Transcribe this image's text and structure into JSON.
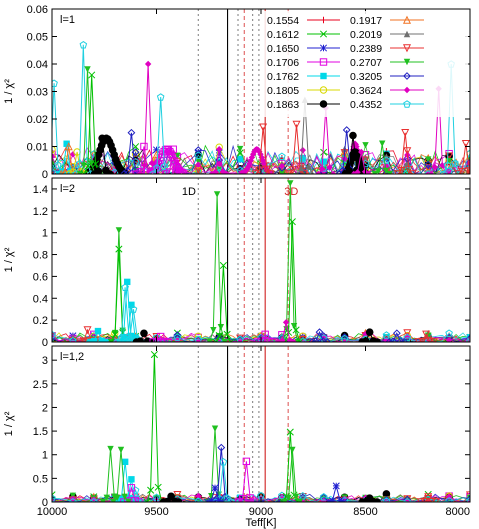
{
  "chart_data": {
    "type": "line",
    "x_label": "Teff[K]",
    "y_label": "1 / χ²",
    "x_range": [
      10000,
      8000
    ],
    "x_ticks": [
      "10000",
      "9500",
      "9000",
      "8500",
      "8000"
    ],
    "x_tick_values": [
      10000,
      9500,
      9000,
      8500,
      8000
    ],
    "vertical_lines": [
      {
        "x": 9300,
        "style": "dotted",
        "color": "#888888"
      },
      {
        "x": 9160,
        "style": "solid",
        "color": "#000000"
      },
      {
        "x": 9110,
        "style": "dotted",
        "color": "#888888"
      },
      {
        "x": 9080,
        "style": "dashed",
        "color": "#e06060"
      },
      {
        "x": 9040,
        "style": "dotted",
        "color": "#888888"
      },
      {
        "x": 9010,
        "style": "dotted",
        "color": "#888888"
      },
      {
        "x": 8980,
        "style": "solid",
        "color": "#d02020"
      },
      {
        "x": 8870,
        "style": "dashed",
        "color": "#e06060"
      }
    ],
    "legend": [
      {
        "name": "0.1554",
        "color": "#e8001c",
        "marker": "+"
      },
      {
        "name": "0.1612",
        "color": "#00c000",
        "marker": "x"
      },
      {
        "name": "0.1650",
        "color": "#2020d0",
        "marker": "*"
      },
      {
        "name": "0.1706",
        "color": "#e000e0",
        "marker": "sq"
      },
      {
        "name": "0.1762",
        "color": "#00d8e8",
        "marker": "fsq"
      },
      {
        "name": "0.1805",
        "color": "#d8d800",
        "marker": "o"
      },
      {
        "name": "0.1863",
        "color": "#000000",
        "marker": "fo"
      },
      {
        "name": "0.1917",
        "color": "#f07020",
        "marker": "tri"
      },
      {
        "name": "0.2019",
        "color": "#707070",
        "marker": "ftri"
      },
      {
        "name": "0.2389",
        "color": "#e83030",
        "marker": "itri"
      },
      {
        "name": "0.2707",
        "color": "#20c020",
        "marker": "fitri"
      },
      {
        "name": "0.3205",
        "color": "#2020c0",
        "marker": "dia"
      },
      {
        "name": "0.3624",
        "color": "#e000c0",
        "marker": "fdia"
      },
      {
        "name": "0.4352",
        "color": "#20d0e0",
        "marker": "pent"
      }
    ],
    "panels": [
      {
        "label": "l=1",
        "y_range": [
          0,
          0.06
        ],
        "y_ticks": [
          "0",
          "0.01",
          "0.02",
          "0.03",
          "0.04",
          "0.05",
          "0.06"
        ],
        "y_tick_values": [
          0,
          0.01,
          0.02,
          0.03,
          0.04,
          0.05,
          0.06
        ],
        "annotations": [],
        "peaks": [
          {
            "series": 13,
            "x": 9990,
            "y": 0.033
          },
          {
            "series": 4,
            "x": 9930,
            "y": 0.011
          },
          {
            "series": 7,
            "x": 9920,
            "y": 0.01
          },
          {
            "series": 5,
            "x": 9880,
            "y": 0.008
          },
          {
            "series": 13,
            "x": 9850,
            "y": 0.047
          },
          {
            "series": 10,
            "x": 9830,
            "y": 0.038
          },
          {
            "series": 1,
            "x": 9810,
            "y": 0.036
          },
          {
            "series": 6,
            "x": 9760,
            "y": 0.013
          },
          {
            "series": 11,
            "x": 9620,
            "y": 0.015
          },
          {
            "series": 3,
            "x": 9560,
            "y": 0.01
          },
          {
            "series": 12,
            "x": 9540,
            "y": 0.04
          },
          {
            "series": 13,
            "x": 9480,
            "y": 0.028
          },
          {
            "series": 3,
            "x": 9420,
            "y": 0.009
          },
          {
            "series": 12,
            "x": 9200,
            "y": 0.009
          },
          {
            "series": 9,
            "x": 8990,
            "y": 0.017
          },
          {
            "series": 9,
            "x": 8830,
            "y": 0.018
          },
          {
            "series": 8,
            "x": 8790,
            "y": 0.027
          },
          {
            "series": 12,
            "x": 8690,
            "y": 0.024
          },
          {
            "series": 11,
            "x": 8590,
            "y": 0.016
          },
          {
            "series": 6,
            "x": 8560,
            "y": 0.014
          },
          {
            "series": 12,
            "x": 8520,
            "y": 0.008
          },
          {
            "series": 10,
            "x": 8420,
            "y": 0.011
          },
          {
            "series": 9,
            "x": 8310,
            "y": 0.015
          },
          {
            "series": 12,
            "x": 8150,
            "y": 0.031
          },
          {
            "series": 13,
            "x": 8090,
            "y": 0.04
          },
          {
            "series": 9,
            "x": 8020,
            "y": 0.011
          }
        ],
        "bumps": [
          {
            "series": 6,
            "x": 9740,
            "y": 0.013,
            "width": 90
          },
          {
            "series": 3,
            "x": 9450,
            "y": 0.009,
            "width": 80
          },
          {
            "series": 12,
            "x": 9020,
            "y": 0.009,
            "width": 70
          },
          {
            "series": 12,
            "x": 8550,
            "y": 0.011,
            "width": 40
          },
          {
            "series": 6,
            "x": 8550,
            "y": 0.008,
            "width": 50
          }
        ]
      },
      {
        "label": "l=2",
        "y_range": [
          0,
          1.5
        ],
        "y_ticks": [
          "0",
          "0.2",
          "0.4",
          "0.6",
          "0.8",
          "1",
          "1.2",
          "1.4"
        ],
        "y_tick_values": [
          0,
          0.2,
          0.4,
          0.6,
          0.8,
          1.0,
          1.2,
          1.4
        ],
        "annotations": [
          {
            "text": "1D",
            "x": 9345,
            "y": 1.38,
            "color": "#000000"
          },
          {
            "text": "3D",
            "x": 8855,
            "y": 1.38,
            "color": "#d02020"
          }
        ],
        "peaks": [
          {
            "series": 9,
            "x": 9830,
            "y": 0.11
          },
          {
            "series": 4,
            "x": 9780,
            "y": 0.1
          },
          {
            "series": 10,
            "x": 9680,
            "y": 1.02
          },
          {
            "series": 1,
            "x": 9680,
            "y": 0.85
          },
          {
            "series": 4,
            "x": 9640,
            "y": 0.55
          },
          {
            "series": 13,
            "x": 9650,
            "y": 0.5
          },
          {
            "series": 4,
            "x": 9620,
            "y": 0.34
          },
          {
            "series": 13,
            "x": 9610,
            "y": 0.3
          },
          {
            "series": 6,
            "x": 9560,
            "y": 0.08
          },
          {
            "series": 3,
            "x": 9480,
            "y": 0.05
          },
          {
            "series": 10,
            "x": 9210,
            "y": 1.35
          },
          {
            "series": 1,
            "x": 9180,
            "y": 0.7
          },
          {
            "series": 10,
            "x": 8860,
            "y": 1.45
          },
          {
            "series": 1,
            "x": 8850,
            "y": 1.1
          },
          {
            "series": 12,
            "x": 8880,
            "y": 0.18
          },
          {
            "series": 3,
            "x": 8980,
            "y": 0.07
          },
          {
            "series": 11,
            "x": 8720,
            "y": 0.09
          },
          {
            "series": 6,
            "x": 8480,
            "y": 0.09
          },
          {
            "series": 11,
            "x": 8350,
            "y": 0.08
          },
          {
            "series": 9,
            "x": 8210,
            "y": 0.07
          }
        ],
        "bumps": []
      },
      {
        "label": "l=1,2",
        "y_range": [
          0,
          3.3
        ],
        "y_ticks": [
          "0",
          "0.5",
          "1",
          "1.5",
          "2",
          "2.5",
          "3"
        ],
        "y_tick_values": [
          0,
          0.5,
          1.0,
          1.5,
          2.0,
          2.5,
          3.0
        ],
        "annotations": [],
        "peaks": [
          {
            "series": 10,
            "x": 9720,
            "y": 1.12
          },
          {
            "series": 4,
            "x": 9650,
            "y": 0.85
          },
          {
            "series": 4,
            "x": 9620,
            "y": 0.48
          },
          {
            "series": 13,
            "x": 9600,
            "y": 0.25
          },
          {
            "series": 3,
            "x": 9620,
            "y": 0.3
          },
          {
            "series": 10,
            "x": 9670,
            "y": 1.1
          },
          {
            "series": 1,
            "x": 9510,
            "y": 3.12
          },
          {
            "series": 6,
            "x": 9430,
            "y": 0.12
          },
          {
            "series": 10,
            "x": 9220,
            "y": 1.55
          },
          {
            "series": 11,
            "x": 9190,
            "y": 1.15
          },
          {
            "series": 13,
            "x": 9180,
            "y": 0.85
          },
          {
            "series": 2,
            "x": 9220,
            "y": 0.3
          },
          {
            "series": 3,
            "x": 9070,
            "y": 0.86
          },
          {
            "series": 1,
            "x": 8860,
            "y": 1.48
          },
          {
            "series": 10,
            "x": 8850,
            "y": 1.1
          },
          {
            "series": 2,
            "x": 8640,
            "y": 0.34
          },
          {
            "series": 6,
            "x": 8480,
            "y": 0.08
          },
          {
            "series": 9,
            "x": 8200,
            "y": 0.07
          }
        ],
        "bumps": []
      }
    ]
  }
}
